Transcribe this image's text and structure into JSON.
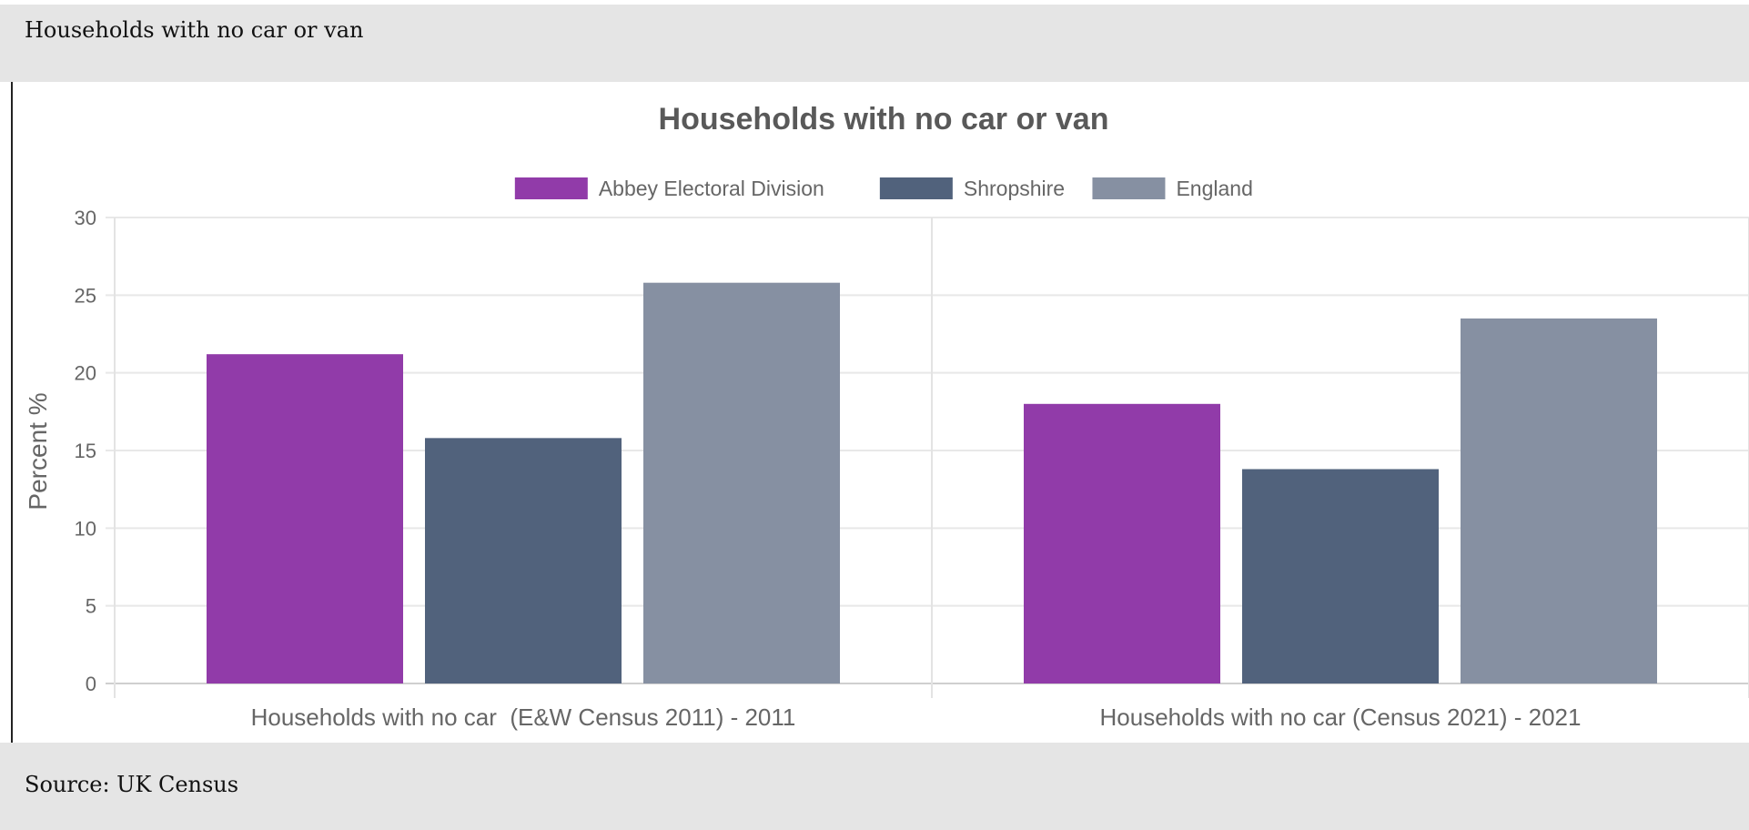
{
  "header": {
    "title": "Households with no car or van"
  },
  "footer": {
    "source": "Source: UK Census"
  },
  "chart_data": {
    "type": "bar",
    "title": "Households with no car or van",
    "ylabel": "Percent %",
    "xlabel": "",
    "ylim": [
      0,
      30
    ],
    "yticks": [
      0,
      5,
      10,
      15,
      20,
      25,
      30
    ],
    "categories": [
      "Households with no car  (E&W Census 2011) - 2011",
      "Households with no car (Census 2021) - 2021"
    ],
    "series": [
      {
        "name": "Abbey Electoral Division",
        "color": "#913ba9",
        "values": [
          21.2,
          18.0
        ]
      },
      {
        "name": "Shropshire",
        "color": "#51627c",
        "values": [
          15.8,
          13.8
        ]
      },
      {
        "name": "England",
        "color": "#8690a2",
        "values": [
          25.8,
          23.5
        ]
      }
    ],
    "legend_position": "top",
    "grid": true
  }
}
